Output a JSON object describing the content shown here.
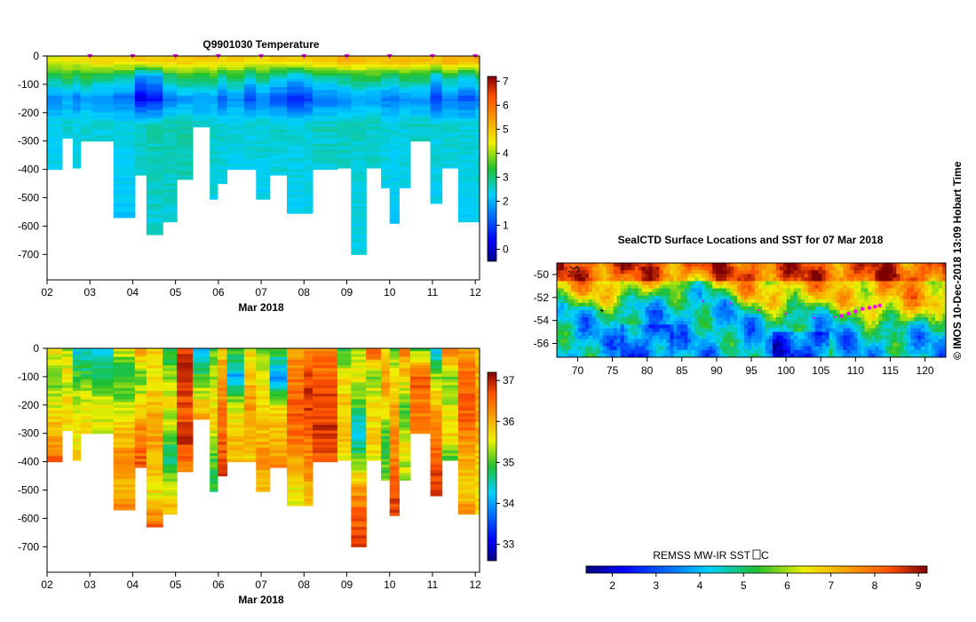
{
  "chart_data": [
    {
      "type": "heatmap",
      "title": "Q9901030  Temperature",
      "x_tick_labels": [
        "02",
        "03",
        "04",
        "05",
        "06",
        "07",
        "08",
        "09",
        "10",
        "11",
        "12"
      ],
      "x_ticks": [
        2,
        3,
        4,
        5,
        6,
        7,
        8,
        9,
        10,
        11,
        12
      ],
      "xlim": [
        2.0,
        12.1
      ],
      "xlabel": "Mar 2018",
      "y_tick_labels": [
        "0",
        "-100",
        "-200",
        "-300",
        "-400",
        "-500",
        "-600",
        "-700"
      ],
      "y_ticks": [
        0,
        -100,
        -200,
        -300,
        -400,
        -500,
        -600,
        -700
      ],
      "ylim": [
        -790,
        0
      ],
      "colorbar": {
        "min": -0.5,
        "max": 7.2,
        "tick_labels": [
          "0",
          "1",
          "2",
          "3",
          "4",
          "5",
          "6",
          "7"
        ],
        "ticks": [
          0,
          1,
          2,
          3,
          4,
          5,
          6,
          7
        ]
      },
      "marker_days": [
        3,
        4,
        5,
        6,
        7,
        8,
        9,
        10,
        11,
        12
      ],
      "marker_color": "#ff00ff",
      "profiles": [
        {
          "x0": 2.0,
          "x1": 2.35,
          "depth": 400,
          "tSurf": 4.4,
          "tMin": 1.6,
          "tDeep": 2.4
        },
        {
          "x0": 2.35,
          "x1": 2.6,
          "depth": 290,
          "tSurf": 4.5,
          "tMin": 1.9,
          "tDeep": 2.5
        },
        {
          "x0": 2.6,
          "x1": 2.78,
          "depth": 395,
          "tSurf": 4.5,
          "tMin": 1.5,
          "tDeep": 2.4
        },
        {
          "x0": 2.78,
          "x1": 3.05,
          "depth": 300,
          "tSurf": 4.6,
          "tMin": 1.8,
          "tDeep": 2.5
        },
        {
          "x0": 3.05,
          "x1": 3.55,
          "depth": 300,
          "tSurf": 4.8,
          "tMin": 1.6,
          "tDeep": 2.5
        },
        {
          "x0": 3.55,
          "x1": 4.05,
          "depth": 570,
          "tSurf": 4.8,
          "tMin": 1.4,
          "tDeep": 2.4
        },
        {
          "x0": 4.05,
          "x1": 4.32,
          "depth": 420,
          "tSurf": 4.9,
          "tMin": 0.2,
          "tDeep": 2.6
        },
        {
          "x0": 4.32,
          "x1": 4.7,
          "depth": 630,
          "tSurf": 4.9,
          "tMin": 0.4,
          "tDeep": 2.7
        },
        {
          "x0": 4.7,
          "x1": 5.03,
          "depth": 585,
          "tSurf": 4.9,
          "tMin": 1.5,
          "tDeep": 2.7
        },
        {
          "x0": 5.03,
          "x1": 5.4,
          "depth": 435,
          "tSurf": 4.9,
          "tMin": 1.8,
          "tDeep": 2.8
        },
        {
          "x0": 5.4,
          "x1": 5.8,
          "depth": 250,
          "tSurf": 4.9,
          "tMin": 1.7,
          "tDeep": 2.6
        },
        {
          "x0": 5.8,
          "x1": 5.98,
          "depth": 505,
          "tSurf": 4.8,
          "tMin": 1.9,
          "tDeep": 2.6
        },
        {
          "x0": 5.98,
          "x1": 6.2,
          "depth": 450,
          "tSurf": 4.7,
          "tMin": 1.2,
          "tDeep": 2.5
        },
        {
          "x0": 6.2,
          "x1": 6.6,
          "depth": 400,
          "tSurf": 4.8,
          "tMin": 1.7,
          "tDeep": 2.5
        },
        {
          "x0": 6.6,
          "x1": 6.88,
          "depth": 400,
          "tSurf": 4.7,
          "tMin": 1.0,
          "tDeep": 2.5
        },
        {
          "x0": 6.88,
          "x1": 7.2,
          "depth": 505,
          "tSurf": 4.6,
          "tMin": 1.6,
          "tDeep": 2.5
        },
        {
          "x0": 7.2,
          "x1": 7.6,
          "depth": 420,
          "tSurf": 4.8,
          "tMin": 1.1,
          "tDeep": 2.5
        },
        {
          "x0": 7.6,
          "x1": 8.0,
          "depth": 555,
          "tSurf": 4.8,
          "tMin": 0.7,
          "tDeep": 2.5
        },
        {
          "x0": 8.0,
          "x1": 8.2,
          "depth": 555,
          "tSurf": 4.9,
          "tMin": 0.9,
          "tDeep": 2.5
        },
        {
          "x0": 8.2,
          "x1": 8.78,
          "depth": 400,
          "tSurf": 5.0,
          "tMin": 1.4,
          "tDeep": 2.6
        },
        {
          "x0": 8.78,
          "x1": 9.1,
          "depth": 395,
          "tSurf": 5.2,
          "tMin": 1.6,
          "tDeep": 2.6
        },
        {
          "x0": 9.1,
          "x1": 9.45,
          "depth": 700,
          "tSurf": 5.1,
          "tMin": 1.8,
          "tDeep": 2.6
        },
        {
          "x0": 9.45,
          "x1": 9.8,
          "depth": 395,
          "tSurf": 5.0,
          "tMin": 1.8,
          "tDeep": 2.6
        },
        {
          "x0": 9.8,
          "x1": 10.0,
          "depth": 465,
          "tSurf": 5.0,
          "tMin": 1.5,
          "tDeep": 2.5
        },
        {
          "x0": 10.0,
          "x1": 10.22,
          "depth": 590,
          "tSurf": 5.1,
          "tMin": 1.4,
          "tDeep": 2.4
        },
        {
          "x0": 10.22,
          "x1": 10.48,
          "depth": 465,
          "tSurf": 5.1,
          "tMin": 1.8,
          "tDeep": 2.5
        },
        {
          "x0": 10.48,
          "x1": 10.95,
          "depth": 300,
          "tSurf": 5.0,
          "tMin": 1.7,
          "tDeep": 2.6
        },
        {
          "x0": 10.95,
          "x1": 11.22,
          "depth": 520,
          "tSurf": 5.0,
          "tMin": 0.8,
          "tDeep": 2.5
        },
        {
          "x0": 11.22,
          "x1": 11.6,
          "depth": 395,
          "tSurf": 5.3,
          "tMin": 1.5,
          "tDeep": 2.5
        },
        {
          "x0": 11.6,
          "x1": 12.0,
          "depth": 585,
          "tSurf": 5.2,
          "tMin": 1.1,
          "tDeep": 2.5
        },
        {
          "x0": 12.0,
          "x1": 12.1,
          "depth": 585,
          "tSurf": 5.2,
          "tMin": 1.5,
          "tDeep": 2.5
        }
      ]
    },
    {
      "type": "heatmap",
      "title": "",
      "x_tick_labels": [
        "02",
        "03",
        "04",
        "05",
        "06",
        "07",
        "08",
        "09",
        "10",
        "11",
        "12"
      ],
      "x_ticks": [
        2,
        3,
        4,
        5,
        6,
        7,
        8,
        9,
        10,
        11,
        12
      ],
      "xlim": [
        2.0,
        12.1
      ],
      "xlabel": "Mar 2018",
      "y_tick_labels": [
        "0",
        "-100",
        "-200",
        "-300",
        "-400",
        "-500",
        "-600",
        "-700"
      ],
      "y_ticks": [
        0,
        -100,
        -200,
        -300,
        -400,
        -500,
        -600,
        -700
      ],
      "ylim": [
        -790,
        0
      ],
      "colorbar": {
        "min": 32.6,
        "max": 37.2,
        "tick_labels": [
          "33",
          "34",
          "35",
          "36",
          "37"
        ],
        "ticks": [
          33,
          34,
          35,
          36,
          37
        ]
      },
      "profiles": [
        {
          "x0": 2.0,
          "x1": 2.35,
          "depth": 400,
          "v": [
            35.8,
            35.0,
            35.5,
            36.0,
            36.6
          ]
        },
        {
          "x0": 2.35,
          "x1": 2.6,
          "depth": 290,
          "v": [
            35.3,
            35.6,
            35.4,
            35.8,
            35.6
          ]
        },
        {
          "x0": 2.6,
          "x1": 2.78,
          "depth": 395,
          "v": [
            34.2,
            35.0,
            35.4,
            35.6,
            35.8
          ]
        },
        {
          "x0": 2.78,
          "x1": 3.05,
          "depth": 300,
          "v": [
            34.3,
            34.8,
            35.3,
            35.6,
            35.6
          ]
        },
        {
          "x0": 3.05,
          "x1": 3.55,
          "depth": 300,
          "v": [
            34.3,
            34.6,
            35.2,
            35.5,
            35.5
          ]
        },
        {
          "x0": 3.55,
          "x1": 4.05,
          "depth": 570,
          "v": [
            35.5,
            34.8,
            35.3,
            35.8,
            36.2,
            36.0,
            36.3
          ]
        },
        {
          "x0": 4.05,
          "x1": 4.32,
          "depth": 420,
          "v": [
            36.2,
            35.0,
            35.8,
            36.4,
            36.6
          ]
        },
        {
          "x0": 4.32,
          "x1": 4.7,
          "depth": 630,
          "v": [
            35.8,
            35.6,
            36.0,
            36.2,
            35.8,
            35.6,
            36.6
          ]
        },
        {
          "x0": 4.7,
          "x1": 5.03,
          "depth": 585,
          "v": [
            34.8,
            35.2,
            35.6,
            35.2,
            34.6,
            35.4,
            36.0
          ]
        },
        {
          "x0": 5.03,
          "x1": 5.4,
          "depth": 435,
          "v": [
            36.9,
            36.8,
            36.7,
            36.8,
            36.4
          ]
        },
        {
          "x0": 5.4,
          "x1": 5.8,
          "depth": 250,
          "v": [
            34.2,
            34.8,
            35.5,
            36.2
          ]
        },
        {
          "x0": 5.8,
          "x1": 5.98,
          "depth": 505,
          "v": [
            35.0,
            35.4,
            35.8,
            35.0,
            34.8
          ]
        },
        {
          "x0": 5.98,
          "x1": 6.2,
          "depth": 450,
          "v": [
            35.8,
            36.2,
            36.4,
            36.6,
            36.9
          ]
        },
        {
          "x0": 6.2,
          "x1": 6.6,
          "depth": 400,
          "v": [
            35.2,
            34.0,
            35.5,
            35.8,
            36.0
          ]
        },
        {
          "x0": 6.6,
          "x1": 6.88,
          "depth": 400,
          "v": [
            35.6,
            35.8,
            36.2,
            36.0,
            35.8
          ]
        },
        {
          "x0": 6.88,
          "x1": 7.2,
          "depth": 505,
          "v": [
            35.2,
            35.6,
            35.8,
            36.2,
            36.0
          ]
        },
        {
          "x0": 7.2,
          "x1": 7.6,
          "depth": 420,
          "v": [
            35.0,
            34.0,
            35.6,
            36.0,
            36.3
          ]
        },
        {
          "x0": 7.6,
          "x1": 8.0,
          "depth": 555,
          "v": [
            36.2,
            36.4,
            36.6,
            36.4,
            35.9,
            35.4
          ]
        },
        {
          "x0": 8.0,
          "x1": 8.2,
          "depth": 555,
          "v": [
            36.2,
            36.8,
            36.8,
            36.4,
            36.2,
            35.8
          ]
        },
        {
          "x0": 8.2,
          "x1": 8.78,
          "depth": 400,
          "v": [
            36.3,
            36.6,
            36.8,
            36.9,
            36.6
          ]
        },
        {
          "x0": 8.78,
          "x1": 9.1,
          "depth": 395,
          "v": [
            34.8,
            35.6,
            35.8,
            36.0,
            35.6
          ]
        },
        {
          "x0": 9.1,
          "x1": 9.45,
          "depth": 700,
          "v": [
            35.2,
            35.6,
            35.0,
            34.2,
            35.2,
            36.2,
            36.6,
            36.8
          ]
        },
        {
          "x0": 9.45,
          "x1": 9.8,
          "depth": 395,
          "v": [
            36.8,
            35.2,
            35.6,
            35.8,
            35.6
          ]
        },
        {
          "x0": 9.8,
          "x1": 10.0,
          "depth": 465,
          "v": [
            35.8,
            36.2,
            35.4,
            34.8,
            35.2
          ]
        },
        {
          "x0": 10.0,
          "x1": 10.22,
          "depth": 590,
          "v": [
            35.0,
            35.6,
            36.0,
            36.2,
            36.4,
            36.6,
            36.8
          ]
        },
        {
          "x0": 10.22,
          "x1": 10.48,
          "depth": 465,
          "v": [
            36.4,
            35.6,
            35.0,
            35.6,
            35.2
          ]
        },
        {
          "x0": 10.48,
          "x1": 10.95,
          "depth": 300,
          "v": [
            35.0,
            36.6,
            36.4,
            36.2
          ]
        },
        {
          "x0": 10.95,
          "x1": 11.22,
          "depth": 520,
          "v": [
            34.2,
            35.6,
            36.2,
            36.6,
            36.8
          ]
        },
        {
          "x0": 11.22,
          "x1": 11.6,
          "depth": 395,
          "v": [
            36.6,
            35.2,
            35.4,
            35.8,
            35.0
          ]
        },
        {
          "x0": 11.6,
          "x1": 12.0,
          "depth": 585,
          "v": [
            36.2,
            36.4,
            36.6,
            36.4,
            36.0,
            35.8,
            36.2
          ]
        },
        {
          "x0": 12.0,
          "x1": 12.1,
          "depth": 585,
          "v": [
            35.8,
            36.0,
            36.2,
            36.0,
            35.8,
            35.6,
            35.8
          ]
        }
      ]
    },
    {
      "type": "heatmap",
      "title": "SealCTD Surface Locations and SST for 07 Mar 2018",
      "x_tick_labels": [
        "70",
        "75",
        "80",
        "85",
        "90",
        "95",
        "100",
        "105",
        "110",
        "115",
        "120"
      ],
      "x_ticks": [
        70,
        75,
        80,
        85,
        90,
        95,
        100,
        105,
        110,
        115,
        120
      ],
      "xlim": [
        67,
        123
      ],
      "y_tick_labels": [
        "-50",
        "-52",
        "-54",
        "-56"
      ],
      "y_ticks": [
        -50,
        -52,
        -54,
        -56
      ],
      "ylim": [
        -57.2,
        -49
      ],
      "track": [
        {
          "lon": 88.0,
          "lat": -52.3
        },
        {
          "lon": 92.0,
          "lat": -52.5
        },
        {
          "lon": 96.0,
          "lat": -53.1
        },
        {
          "lon": 100.0,
          "lat": -53.4
        },
        {
          "lon": 104.0,
          "lat": -53.8
        },
        {
          "lon": 107.0,
          "lat": -53.7
        },
        {
          "lon": 108.0,
          "lat": -53.6
        },
        {
          "lon": 109.0,
          "lat": -53.4
        },
        {
          "lon": 110.0,
          "lat": -53.2
        },
        {
          "lon": 111.0,
          "lat": -53.0
        },
        {
          "lon": 112.0,
          "lat": -52.9
        },
        {
          "lon": 112.8,
          "lat": -52.8
        },
        {
          "lon": 113.5,
          "lat": -52.7
        }
      ],
      "track_color": "#ff00ff",
      "colorbar": {
        "label": "REMSS MW-IR SST ",
        "label_suffix": "C",
        "min": 1.4,
        "max": 9.2,
        "tick_labels": [
          "2",
          "3",
          "4",
          "5",
          "6",
          "7",
          "8",
          "9"
        ],
        "ticks": [
          2,
          3,
          4,
          5,
          6,
          7,
          8,
          9
        ]
      }
    }
  ],
  "side_label": "© IMOS 10-Dec-2018 13:09 Hobart Time"
}
